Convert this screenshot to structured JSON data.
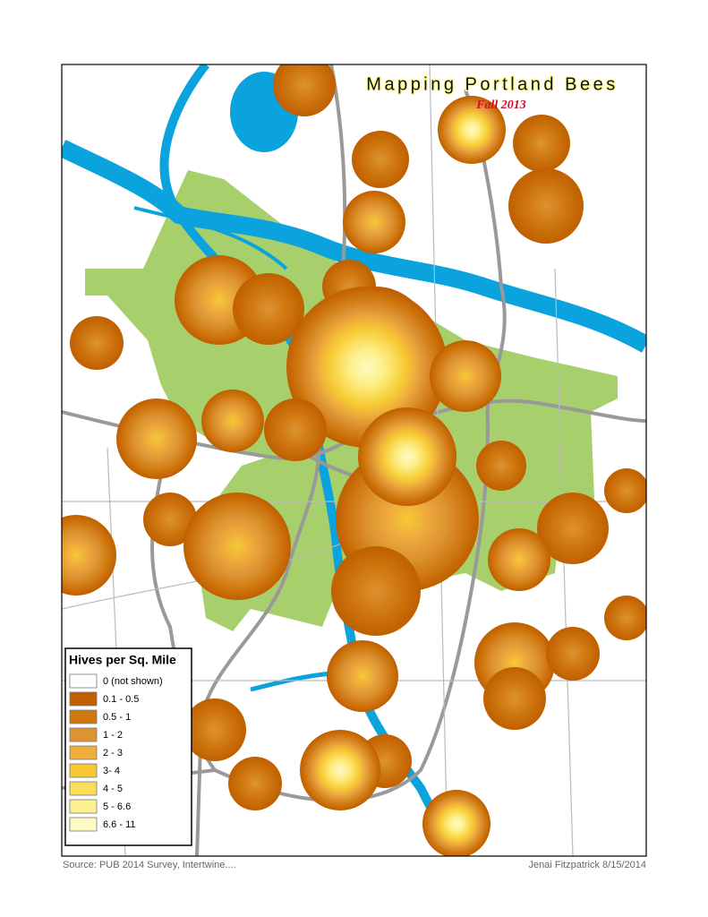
{
  "title": "Mapping Portland Bees",
  "subtitle": "Fall 2013",
  "legend": {
    "title": "Hives per Sq. Mile",
    "items": [
      {
        "label": "0 (not shown)",
        "color": "#ffffff"
      },
      {
        "label": "0.1 - 0.5",
        "color": "#c05f00"
      },
      {
        "label": "0.5 - 1",
        "color": "#cf7810"
      },
      {
        "label": "1 - 2",
        "color": "#dd9332"
      },
      {
        "label": "2 - 3",
        "color": "#efad3c"
      },
      {
        "label": "3- 4",
        "color": "#f6c934"
      },
      {
        "label": "4 - 5",
        "color": "#fadd5a"
      },
      {
        "label": "5 - 6.6",
        "color": "#fdf08e"
      },
      {
        "label": "6.6 - 11",
        "color": "#fff9c4"
      }
    ]
  },
  "footer": {
    "source": "Source: PUB 2014 Survey, Intertwine....",
    "credit": "Jenai Fitzpatrick 8/15/2014"
  }
}
